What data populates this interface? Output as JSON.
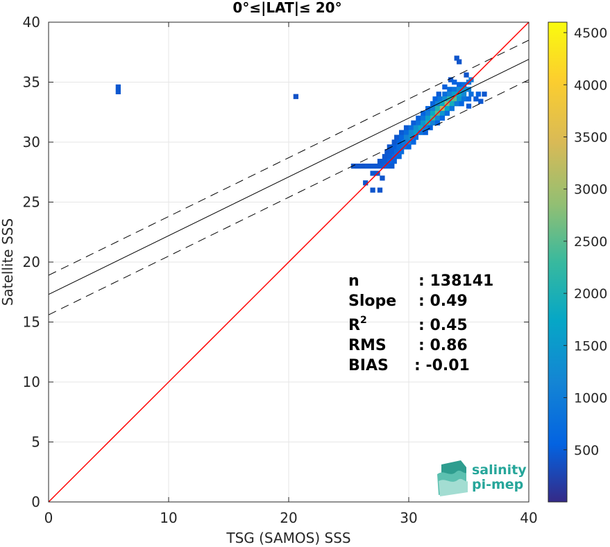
{
  "chart_data": {
    "type": "scatter",
    "title": "0°≤|LAT|≤ 20°",
    "xlabel": "TSG (SAMOS) SSS",
    "ylabel": "Satellite SSS",
    "xlim": [
      0,
      40
    ],
    "ylim": [
      0,
      40
    ],
    "x_ticks": [
      "0",
      "10",
      "20",
      "30",
      "40"
    ],
    "y_ticks": [
      "0",
      "5",
      "10",
      "15",
      "20",
      "25",
      "30",
      "35",
      "40"
    ],
    "grid": true,
    "colorbar": {
      "range": [
        0,
        4600
      ],
      "ticks": [
        "500",
        "1000",
        "1500",
        "2000",
        "2500",
        "3000",
        "3500",
        "4000",
        "4500"
      ],
      "colormap": "parula"
    },
    "identity_line": {
      "from": [
        0,
        0
      ],
      "to": [
        40,
        40
      ],
      "color": "#ff0000"
    },
    "fit_line": {
      "intercept": 17.3,
      "slope": 0.49,
      "color": "#000000"
    },
    "fit_band": {
      "lower_intercept": 15.6,
      "upper_intercept": 18.9,
      "slope": 0.49
    },
    "density_cells": [
      [
        5.8,
        34.6,
        60
      ],
      [
        5.8,
        34.2,
        60
      ],
      [
        20.6,
        33.8,
        20
      ],
      [
        34.0,
        37.0,
        40
      ],
      [
        34.2,
        36.7,
        40
      ],
      [
        34.8,
        35.6,
        40
      ],
      [
        33.5,
        35.2,
        60
      ],
      [
        33.8,
        35.0,
        150
      ],
      [
        34.2,
        34.8,
        150
      ],
      [
        34.6,
        34.8,
        300
      ],
      [
        35.0,
        35.0,
        400
      ],
      [
        35.2,
        35.2,
        500
      ],
      [
        33.0,
        34.6,
        120
      ],
      [
        33.4,
        34.4,
        250
      ],
      [
        33.8,
        34.4,
        400
      ],
      [
        34.2,
        34.4,
        700
      ],
      [
        34.6,
        34.4,
        900
      ],
      [
        35.0,
        34.4,
        600
      ],
      [
        32.5,
        34.0,
        100
      ],
      [
        33.0,
        34.0,
        300
      ],
      [
        33.4,
        34.0,
        600
      ],
      [
        33.8,
        34.0,
        1000
      ],
      [
        34.2,
        34.0,
        1200
      ],
      [
        34.6,
        34.0,
        700
      ],
      [
        35.2,
        34.0,
        300
      ],
      [
        35.8,
        34.0,
        150
      ],
      [
        36.3,
        34.0,
        60
      ],
      [
        32.2,
        33.6,
        150
      ],
      [
        32.6,
        33.6,
        400
      ],
      [
        33.0,
        33.6,
        800
      ],
      [
        33.4,
        33.6,
        1500
      ],
      [
        33.8,
        33.6,
        1800
      ],
      [
        34.2,
        33.6,
        900
      ],
      [
        34.6,
        33.6,
        400
      ],
      [
        35.0,
        33.6,
        200
      ],
      [
        35.6,
        33.6,
        100
      ],
      [
        36.0,
        33.4,
        60
      ],
      [
        32.0,
        33.2,
        200
      ],
      [
        32.4,
        33.2,
        600
      ],
      [
        32.8,
        33.2,
        1200
      ],
      [
        33.2,
        33.2,
        2000
      ],
      [
        33.6,
        33.2,
        1300
      ],
      [
        34.0,
        33.2,
        500
      ],
      [
        34.4,
        33.2,
        200
      ],
      [
        35.0,
        33.0,
        100
      ],
      [
        31.6,
        32.8,
        200
      ],
      [
        32.0,
        32.8,
        600
      ],
      [
        32.4,
        32.8,
        1400
      ],
      [
        32.8,
        32.8,
        2200
      ],
      [
        33.2,
        32.8,
        1100
      ],
      [
        33.6,
        32.8,
        400
      ],
      [
        31.2,
        32.4,
        150
      ],
      [
        31.6,
        32.4,
        500
      ],
      [
        32.0,
        32.4,
        1200
      ],
      [
        32.4,
        32.4,
        1800
      ],
      [
        32.8,
        32.4,
        900
      ],
      [
        33.2,
        32.4,
        300
      ],
      [
        30.8,
        32.0,
        120
      ],
      [
        31.2,
        32.0,
        400
      ],
      [
        31.6,
        32.0,
        1000
      ],
      [
        32.0,
        32.0,
        1600
      ],
      [
        32.4,
        32.0,
        700
      ],
      [
        32.8,
        32.0,
        200
      ],
      [
        30.4,
        31.6,
        100
      ],
      [
        30.8,
        31.6,
        350
      ],
      [
        31.2,
        31.6,
        900
      ],
      [
        31.6,
        31.6,
        1400
      ],
      [
        32.0,
        31.6,
        600
      ],
      [
        32.4,
        31.6,
        200
      ],
      [
        29.8,
        31.2,
        80
      ],
      [
        30.2,
        31.2,
        300
      ],
      [
        30.6,
        31.2,
        800
      ],
      [
        31.0,
        31.2,
        1200
      ],
      [
        31.4,
        31.2,
        500
      ],
      [
        31.8,
        31.2,
        150
      ],
      [
        29.4,
        30.8,
        80
      ],
      [
        29.8,
        30.8,
        250
      ],
      [
        30.2,
        30.8,
        700
      ],
      [
        30.6,
        30.8,
        1000
      ],
      [
        31.0,
        30.8,
        400
      ],
      [
        31.4,
        30.8,
        120
      ],
      [
        29.0,
        30.4,
        60
      ],
      [
        29.4,
        30.4,
        200
      ],
      [
        29.8,
        30.4,
        600
      ],
      [
        30.2,
        30.4,
        800
      ],
      [
        30.6,
        30.4,
        300
      ],
      [
        28.8,
        30.0,
        60
      ],
      [
        29.2,
        30.0,
        150
      ],
      [
        29.6,
        30.0,
        400
      ],
      [
        30.0,
        30.0,
        600
      ],
      [
        30.4,
        30.0,
        200
      ],
      [
        28.4,
        29.6,
        60
      ],
      [
        28.8,
        29.6,
        120
      ],
      [
        29.2,
        29.6,
        300
      ],
      [
        29.6,
        29.6,
        400
      ],
      [
        30.0,
        29.6,
        150
      ],
      [
        28.2,
        29.2,
        60
      ],
      [
        28.6,
        29.2,
        100
      ],
      [
        29.0,
        29.2,
        250
      ],
      [
        29.4,
        29.2,
        300
      ],
      [
        28.0,
        28.8,
        60
      ],
      [
        28.4,
        28.8,
        100
      ],
      [
        28.8,
        28.8,
        200
      ],
      [
        29.2,
        28.8,
        200
      ],
      [
        27.6,
        28.4,
        60
      ],
      [
        28.0,
        28.4,
        80
      ],
      [
        28.4,
        28.4,
        150
      ],
      [
        28.8,
        28.4,
        120
      ],
      [
        27.0,
        28.0,
        60
      ],
      [
        27.4,
        28.0,
        60
      ],
      [
        27.8,
        28.0,
        100
      ],
      [
        28.2,
        28.0,
        120
      ],
      [
        28.6,
        28.0,
        80
      ],
      [
        25.4,
        28.0,
        40
      ],
      [
        25.8,
        28.0,
        40
      ],
      [
        26.2,
        28.0,
        40
      ],
      [
        26.6,
        28.0,
        60
      ],
      [
        27.0,
        27.4,
        60
      ],
      [
        27.4,
        27.4,
        60
      ],
      [
        27.8,
        27.0,
        40
      ],
      [
        26.4,
        26.6,
        40
      ],
      [
        27.0,
        26.0,
        40
      ],
      [
        27.6,
        26.0,
        40
      ]
    ],
    "annotations": [
      {
        "label": "n",
        "value": ": 138141"
      },
      {
        "label": "Slope",
        "value": ": 0.49"
      },
      {
        "label": "R",
        "sup": "2",
        "value": ": 0.45"
      },
      {
        "label": "RMS",
        "value": ": 0.86"
      },
      {
        "label": "BIAS",
        "value": ": -0.01"
      }
    ]
  },
  "logo": {
    "line1": "salinity",
    "line2": "pi-mep",
    "color": "#26a69a"
  }
}
